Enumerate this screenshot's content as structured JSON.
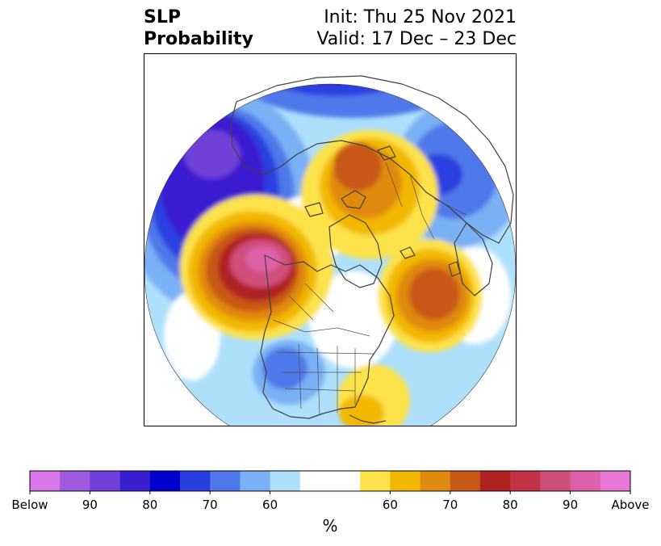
{
  "title": {
    "left_line1": "SLP",
    "left_line2": "Probability",
    "right_line1": "Init: Thu 25 Nov 2021",
    "right_line2": "Valid: 17 Dec – 23 Dec"
  },
  "map": {
    "projection": "north-polar-stereographic",
    "background_color": "#ffffff",
    "coastline_color": "#404040"
  },
  "colorbar": {
    "unit": "%",
    "colors": [
      "#d877e8",
      "#a05ae0",
      "#7040d8",
      "#3a1fd0",
      "#0000cd",
      "#2a3fe0",
      "#5078ea",
      "#7ab0f4",
      "#aee0fc",
      "#ffffff",
      "#ffffff",
      "#fde24a",
      "#f2b800",
      "#e08a10",
      "#c85818",
      "#b02222",
      "#c43248",
      "#d0507c",
      "#dd60a8",
      "#e878d8"
    ],
    "tick_labels": [
      {
        "text": "Below",
        "index": 0
      },
      {
        "text": "90",
        "index": 2
      },
      {
        "text": "80",
        "index": 4
      },
      {
        "text": "70",
        "index": 6
      },
      {
        "text": "60",
        "index": 8
      },
      {
        "text": "60",
        "index": 12
      },
      {
        "text": "70",
        "index": 14
      },
      {
        "text": "80",
        "index": 16
      },
      {
        "text": "90",
        "index": 18
      },
      {
        "text": "Above",
        "index": 20
      }
    ]
  }
}
